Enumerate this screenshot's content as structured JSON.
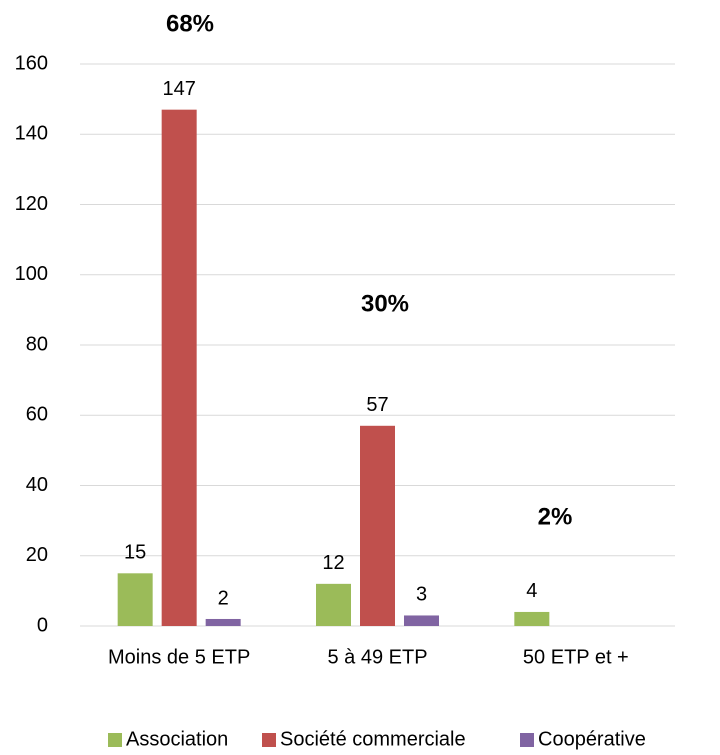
{
  "chart_data": {
    "type": "bar",
    "categories": [
      "Moins de 5 ETP",
      "5 à 49 ETP",
      "50 ETP et +"
    ],
    "series": [
      {
        "name": "Association",
        "color": "#9bbb59",
        "values": [
          15,
          12,
          4
        ]
      },
      {
        "name": "Société commerciale",
        "color": "#c0504d",
        "values": [
          147,
          57,
          null
        ]
      },
      {
        "name": "Coopérative",
        "color": "#8064a2",
        "values": [
          2,
          3,
          null
        ]
      }
    ],
    "annotations": [
      "68%",
      "30%",
      "2%"
    ],
    "ylim": [
      0,
      160
    ],
    "yticks": [
      0,
      20,
      40,
      60,
      80,
      100,
      120,
      140,
      160
    ],
    "grid": true,
    "legend": "bottom"
  }
}
